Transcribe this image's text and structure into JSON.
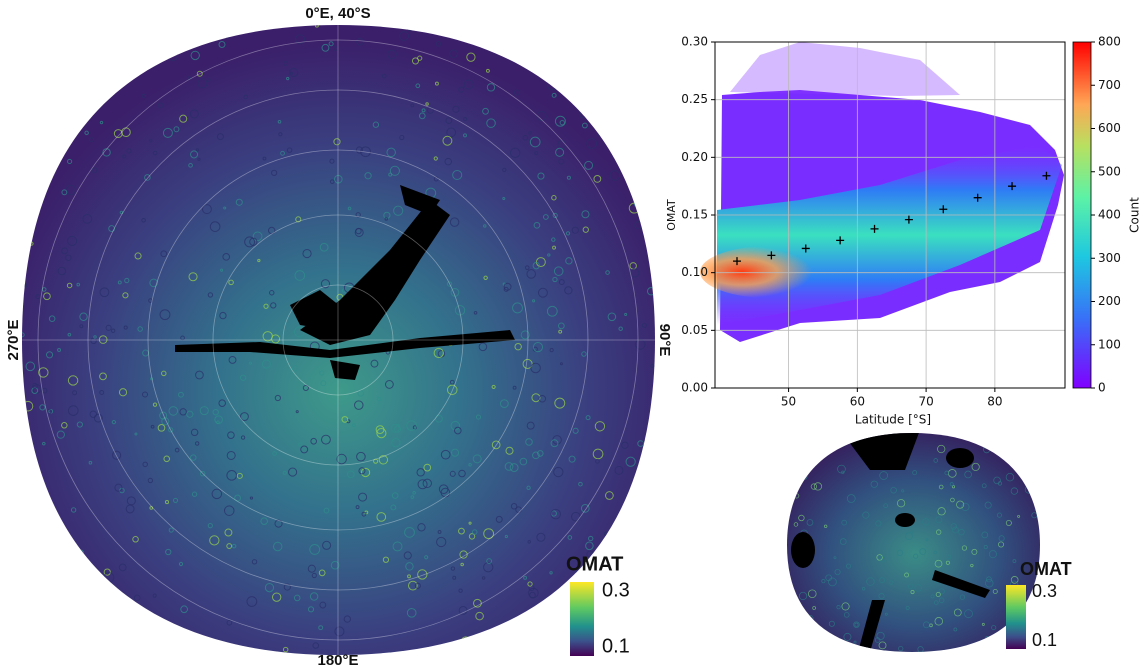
{
  "map": {
    "top_label": "0°E, 40°S",
    "left_label": "270°E",
    "right_label": "90°E",
    "bottom_label": "180°E",
    "colorbar": {
      "title": "OMAT",
      "max_label": "0.3",
      "min_label": "0.1"
    }
  },
  "chart_data": {
    "type": "heatmap",
    "xlabel": "Latitude [°S]",
    "ylabel": "OMAT",
    "xlim": [
      39.3,
      90.2
    ],
    "ylim": [
      0,
      0.3
    ],
    "xticks": [
      50,
      60,
      70,
      80
    ],
    "yticks": [
      {
        "value": 0,
        "label": "0.00"
      },
      0.05,
      {
        "value": 0.1,
        "label": "0.10"
      },
      0.15,
      {
        "value": 0.2,
        "label": "0.20"
      },
      0.25,
      {
        "value": 0.3,
        "label": "0.30"
      }
    ],
    "grid": true,
    "x": [
      42.5,
      47.5,
      52.5,
      57.5,
      62.5,
      67.5,
      72.5,
      77.5,
      82.5,
      87.5
    ],
    "values": [
      0.11,
      0.115,
      0.121,
      0.128,
      0.138,
      0.146,
      0.155,
      0.165,
      0.175,
      0.184
    ],
    "marker_color": "#000000",
    "colorbar": {
      "label": "Count",
      "lim": [
        0,
        800
      ],
      "ticks": [
        0,
        100,
        200,
        300,
        400,
        500,
        600,
        700,
        800
      ]
    }
  },
  "inset_map": {
    "colorbar": {
      "title": "OMAT",
      "max_label": "0.3",
      "min_label": "0.1"
    }
  }
}
